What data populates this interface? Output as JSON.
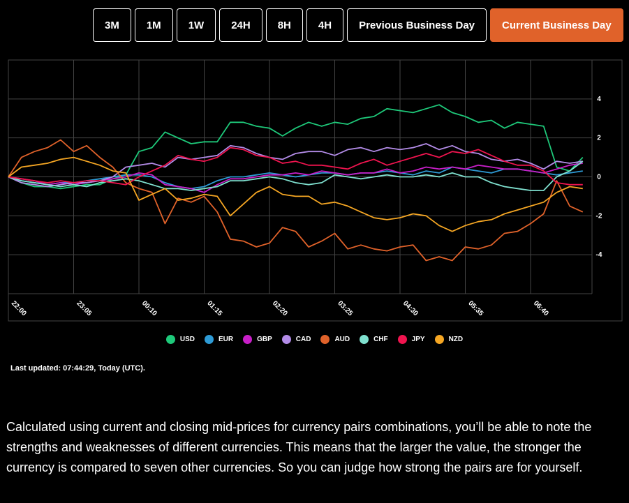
{
  "buttons": [
    {
      "label": "3M"
    },
    {
      "label": "1M"
    },
    {
      "label": "1W"
    },
    {
      "label": "24H"
    },
    {
      "label": "8H"
    },
    {
      "label": "4H"
    },
    {
      "label": "Previous Business Day"
    },
    {
      "label": "Current Business Day",
      "active": true
    }
  ],
  "chart_data": {
    "type": "line",
    "categories": [
      "22:00",
      null,
      null,
      null,
      null,
      "23:05",
      null,
      null,
      null,
      null,
      "00:10",
      null,
      null,
      null,
      null,
      "01:15",
      null,
      null,
      null,
      null,
      "02:20",
      null,
      null,
      null,
      null,
      "03:25",
      null,
      null,
      null,
      null,
      "04:30",
      null,
      null,
      null,
      null,
      "05:35",
      null,
      null,
      null,
      null,
      "06:40",
      null,
      null,
      null,
      null
    ],
    "series": [
      {
        "name": "USD",
        "color": "#1ec97a",
        "values": [
          0,
          -0.3,
          -0.5,
          -0.5,
          -0.6,
          -0.5,
          -0.4,
          -0.4,
          -0.1,
          0.1,
          1.3,
          1.5,
          2.3,
          2.0,
          1.7,
          1.8,
          1.8,
          2.8,
          2.8,
          2.6,
          2.5,
          2.1,
          2.5,
          2.8,
          2.6,
          2.8,
          2.7,
          3.0,
          3.1,
          3.5,
          3.4,
          3.3,
          3.5,
          3.7,
          3.3,
          3.1,
          2.8,
          2.9,
          2.5,
          2.8,
          2.7,
          2.6,
          0.5,
          0.3,
          1.0
        ]
      },
      {
        "name": "EUR",
        "color": "#2e9bd6",
        "values": [
          0,
          -0.2,
          -0.3,
          -0.4,
          -0.3,
          -0.3,
          -0.2,
          -0.1,
          0,
          0.1,
          0.1,
          0,
          -0.3,
          -0.5,
          -0.6,
          -0.5,
          -0.2,
          0,
          0,
          0.1,
          0.2,
          0.1,
          0,
          0.1,
          0.2,
          0.2,
          0.1,
          0.2,
          0.2,
          0.3,
          0.2,
          0.1,
          0.3,
          0.2,
          0.5,
          0.4,
          0.3,
          0.2,
          0.4,
          0.4,
          0.3,
          0.2,
          0.1,
          0.2,
          0.3
        ]
      },
      {
        "name": "GBP",
        "color": "#c81fc8",
        "values": [
          0,
          -0.1,
          -0.2,
          -0.4,
          -0.3,
          -0.4,
          -0.3,
          -0.2,
          -0.1,
          0,
          0.2,
          0.1,
          -0.4,
          -0.5,
          -0.6,
          -0.8,
          -0.4,
          -0.1,
          -0.1,
          0,
          0.1,
          0.1,
          0.2,
          0.1,
          0.3,
          0.2,
          0.1,
          0.2,
          0.2,
          0.4,
          0.2,
          0.3,
          0.5,
          0.4,
          0.5,
          0.4,
          0.6,
          0.5,
          0.4,
          0.4,
          0.3,
          0.2,
          0.4,
          0.6,
          0.7
        ]
      },
      {
        "name": "CAD",
        "color": "#b38ce8",
        "values": [
          0,
          -0.3,
          -0.4,
          -0.5,
          -0.4,
          -0.3,
          -0.3,
          -0.2,
          0,
          0.5,
          0.6,
          0.7,
          0.5,
          1.0,
          0.9,
          1.0,
          1.1,
          1.6,
          1.5,
          1.2,
          1.0,
          0.9,
          1.2,
          1.3,
          1.3,
          1.1,
          1.4,
          1.5,
          1.3,
          1.5,
          1.4,
          1.5,
          1.7,
          1.4,
          1.6,
          1.3,
          1.2,
          0.9,
          0.8,
          0.9,
          0.7,
          0.4,
          0.8,
          0.7,
          0.8
        ]
      },
      {
        "name": "AUD",
        "color": "#e0622a",
        "values": [
          0,
          1.0,
          1.3,
          1.5,
          1.9,
          1.3,
          1.6,
          1.0,
          0.5,
          -0.3,
          -0.6,
          -0.8,
          -2.4,
          -1.1,
          -1.3,
          -1.0,
          -1.8,
          -3.2,
          -3.3,
          -3.6,
          -3.4,
          -2.6,
          -2.8,
          -3.6,
          -3.3,
          -2.9,
          -3.7,
          -3.5,
          -3.7,
          -3.8,
          -3.6,
          -3.5,
          -4.3,
          -4.1,
          -4.3,
          -3.6,
          -3.7,
          -3.5,
          -2.9,
          -2.8,
          -2.4,
          -1.9,
          -0.2,
          -1.5,
          -1.8
        ]
      },
      {
        "name": "CHF",
        "color": "#7fe0cf",
        "values": [
          0,
          -0.2,
          -0.3,
          -0.4,
          -0.5,
          -0.4,
          -0.5,
          -0.3,
          -0.2,
          -0.1,
          -0.2,
          -0.4,
          -0.6,
          -0.6,
          -0.7,
          -0.6,
          -0.5,
          -0.2,
          -0.2,
          -0.1,
          0,
          -0.1,
          -0.3,
          -0.4,
          -0.3,
          0.1,
          0,
          -0.1,
          0,
          0.1,
          0,
          0,
          0.1,
          0,
          0.2,
          0,
          0,
          -0.3,
          -0.5,
          -0.6,
          -0.7,
          -0.7,
          0,
          0.3,
          0.8
        ]
      },
      {
        "name": "JPY",
        "color": "#f0144f",
        "values": [
          0,
          -0.1,
          -0.2,
          -0.3,
          -0.2,
          -0.3,
          -0.2,
          -0.2,
          -0.3,
          -0.4,
          0,
          0.3,
          0.6,
          1.1,
          0.9,
          0.8,
          1.0,
          1.5,
          1.4,
          1.1,
          1.0,
          0.7,
          0.8,
          0.6,
          0.6,
          0.5,
          0.4,
          0.7,
          0.9,
          0.6,
          0.8,
          1.0,
          1.2,
          1.0,
          1.3,
          1.2,
          1.4,
          1.1,
          0.8,
          0.6,
          0.6,
          0.3,
          -0.3,
          -0.4,
          -0.4
        ]
      },
      {
        "name": "NZD",
        "color": "#f5a623",
        "values": [
          0,
          0.5,
          0.6,
          0.7,
          0.9,
          1.0,
          0.8,
          0.6,
          0.3,
          0.2,
          -1.2,
          -0.9,
          -0.6,
          -1.2,
          -1.1,
          -0.9,
          -1.0,
          -2.0,
          -1.4,
          -0.8,
          -0.5,
          -0.9,
          -1.0,
          -1.0,
          -1.4,
          -1.3,
          -1.5,
          -1.8,
          -2.1,
          -2.2,
          -2.1,
          -1.9,
          -2.0,
          -2.5,
          -2.8,
          -2.5,
          -2.3,
          -2.2,
          -1.9,
          -1.7,
          -1.5,
          -1.3,
          -0.8,
          -0.5,
          -0.6
        ]
      }
    ],
    "ylim": [
      -6,
      6
    ],
    "yticks": [
      -4,
      -2,
      0,
      2,
      4
    ],
    "grid": true
  },
  "last_updated": "Last updated: 07:44:29, Today (UTC).",
  "description": "Calculated using current and closing mid-prices for currency pairs combinations, you’ll be able to note the strengths and weaknesses of different currencies. This means that the larger the value, the stronger the currency is compared to seven other currencies. So you can judge how strong the pairs are for yourself."
}
